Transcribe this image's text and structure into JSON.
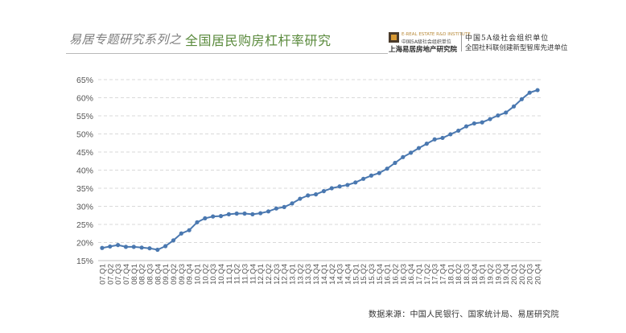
{
  "header": {
    "series_title": "易居专题研究系列之",
    "topic_title": "全国居民购房杠杆率研究",
    "logo_en": "E-REAL ESTATE R&D INSTITUTE",
    "logo_cn_small": "中国5A级社会组织单位",
    "logo_cn": "上海易居房地产研究院",
    "org_line1": "中国5A级社会组织单位",
    "org_line2": "全国社科联创建新型智库先进单位"
  },
  "source": "数据来源：中国人民银行、国家统计局、易居研究院",
  "colors": {
    "line": "#4a78b0",
    "marker": "#4a78b0",
    "grid": "#d9d9d9",
    "topic": "#5a8a3c"
  },
  "chart_data": {
    "type": "line",
    "title": "",
    "xlabel": "",
    "ylabel": "",
    "ylim": [
      15,
      65
    ],
    "y_ticks": [
      "15%",
      "20%",
      "25%",
      "30%",
      "35%",
      "40%",
      "45%",
      "50%",
      "55%",
      "60%",
      "65%"
    ],
    "grid": "horizontal dashed",
    "categories": [
      "07.Q1",
      "07.Q2",
      "07.Q3",
      "07.Q4",
      "08.Q1",
      "08.Q2",
      "08.Q3",
      "08.Q4",
      "09.Q1",
      "09.Q2",
      "09.Q3",
      "09.Q4",
      "10.Q1",
      "10.Q2",
      "10.Q3",
      "10.Q4",
      "11.Q1",
      "11.Q2",
      "11.Q3",
      "11.Q4",
      "12.Q1",
      "12.Q2",
      "12.Q3",
      "12.Q4",
      "13.Q1",
      "13.Q2",
      "13.Q3",
      "13.Q4",
      "14.Q1",
      "14.Q2",
      "14.Q3",
      "14.Q4",
      "15.Q1",
      "15.Q2",
      "15.Q3",
      "15.Q4",
      "16.Q1",
      "16.Q2",
      "16.Q3",
      "16.Q4",
      "17.Q1",
      "17.Q2",
      "17.Q3",
      "17.Q4",
      "18.Q1",
      "18.Q2",
      "18.Q3",
      "18.Q4",
      "19.Q1",
      "19.Q2",
      "19.Q3",
      "19.Q4",
      "20.Q1",
      "20.Q2",
      "20.Q3",
      "20.Q4"
    ],
    "series": [
      {
        "values": [
          18.5,
          18.9,
          19.3,
          18.8,
          18.8,
          18.6,
          18.4,
          18.0,
          19.0,
          20.6,
          22.5,
          23.4,
          25.6,
          26.7,
          27.2,
          27.3,
          27.8,
          28.0,
          28.0,
          27.8,
          28.1,
          28.6,
          29.4,
          29.8,
          30.8,
          32.1,
          33.0,
          33.3,
          34.2,
          35.0,
          35.5,
          35.9,
          36.6,
          37.6,
          38.5,
          39.2,
          40.4,
          42.0,
          43.6,
          44.8,
          46.1,
          47.3,
          48.5,
          48.9,
          49.9,
          50.9,
          52.1,
          52.9,
          53.2,
          54.1,
          55.1,
          55.9,
          57.6,
          59.6,
          61.4,
          62.1
        ]
      }
    ]
  }
}
